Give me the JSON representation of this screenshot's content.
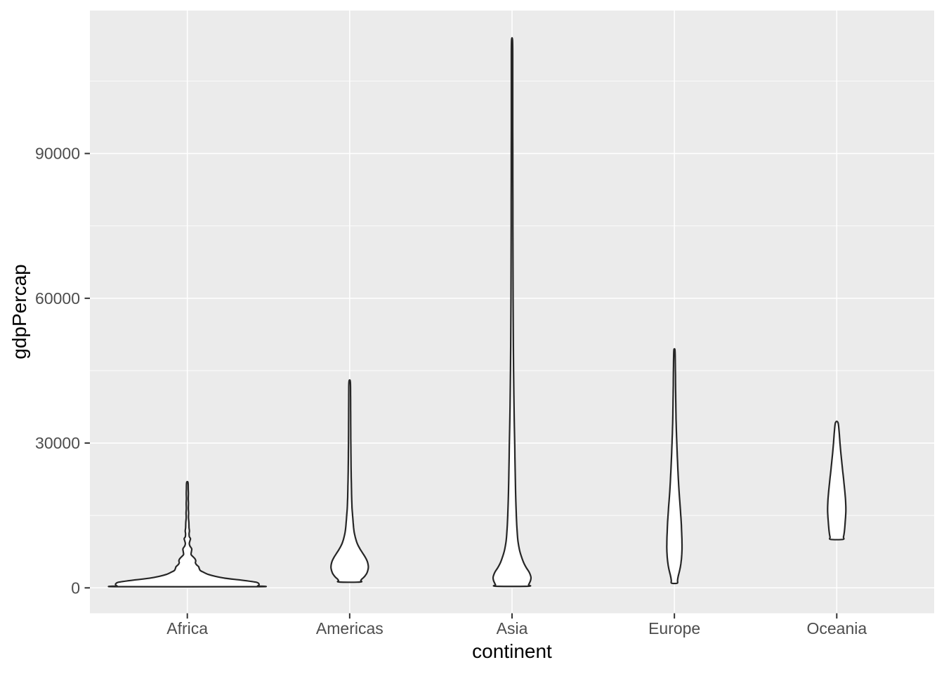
{
  "axes": {
    "x_title": "continent",
    "y_title": "gdpPercap",
    "x_tick_labels": [
      "Africa",
      "Americas",
      "Asia",
      "Europe",
      "Oceania"
    ],
    "y_tick_labels": [
      "0",
      "30000",
      "60000",
      "90000"
    ]
  },
  "chart_data": {
    "type": "violin",
    "title": "",
    "xlabel": "continent",
    "ylabel": "gdpPercap",
    "categories": [
      "Africa",
      "Americas",
      "Asia",
      "Europe",
      "Oceania"
    ],
    "y_major_ticks": [
      0,
      30000,
      60000,
      90000
    ],
    "y_minor_gridlines": [
      15000,
      45000,
      75000,
      105000
    ],
    "ylim": [
      -5265,
      119620
    ],
    "grid": "major-and-minor-horizontal, major-vertical-at-categories",
    "legend": "none",
    "series": [
      {
        "name": "Africa",
        "min": 241,
        "max": 21950,
        "profile": [
          [
            21950,
            0.7
          ],
          [
            21500,
            1.2
          ],
          [
            20500,
            1.3
          ],
          [
            19500,
            1.5
          ],
          [
            18500,
            1.3
          ],
          [
            17500,
            1.6
          ],
          [
            16500,
            1.4
          ],
          [
            15500,
            1.8
          ],
          [
            14500,
            1.6
          ],
          [
            13500,
            2.2
          ],
          [
            12500,
            2.4
          ],
          [
            11800,
            3.0
          ],
          [
            11200,
            2.5
          ],
          [
            10600,
            2.8
          ],
          [
            10200,
            4.5
          ],
          [
            9700,
            3.6
          ],
          [
            9200,
            2.8
          ],
          [
            8700,
            3.6
          ],
          [
            8100,
            6.2
          ],
          [
            7500,
            5.8
          ],
          [
            6900,
            5.4
          ],
          [
            6400,
            8.5
          ],
          [
            6000,
            11.0
          ],
          [
            5600,
            12.0
          ],
          [
            5200,
            11.5
          ],
          [
            4800,
            13.0
          ],
          [
            4400,
            16.0
          ],
          [
            4000,
            17.0
          ],
          [
            3600,
            18.5
          ],
          [
            3200,
            23.5
          ],
          [
            2800,
            29.5
          ],
          [
            2400,
            39.5
          ],
          [
            2000,
            54.0
          ],
          [
            1600,
            77.0
          ],
          [
            1200,
            97.0
          ],
          [
            900,
            101.5
          ],
          [
            600,
            102.0
          ],
          [
            400,
            100.0
          ],
          [
            241,
            97.0
          ]
        ]
      },
      {
        "name": "Americas",
        "min": 1202,
        "max": 42950,
        "profile": [
          [
            42950,
            0.7
          ],
          [
            42000,
            1.2
          ],
          [
            40000,
            1.3
          ],
          [
            37000,
            1.4
          ],
          [
            34000,
            1.5
          ],
          [
            31000,
            1.6
          ],
          [
            28000,
            1.8
          ],
          [
            25000,
            2.0
          ],
          [
            23000,
            2.2
          ],
          [
            21000,
            2.5
          ],
          [
            19500,
            2.7
          ],
          [
            18000,
            3.0
          ],
          [
            16500,
            3.4
          ],
          [
            15000,
            4.2
          ],
          [
            13500,
            5.0
          ],
          [
            12500,
            5.6
          ],
          [
            11500,
            6.5
          ],
          [
            10500,
            8.0
          ],
          [
            9500,
            10.0
          ],
          [
            8800,
            12.0
          ],
          [
            8000,
            15.0
          ],
          [
            7200,
            18.5
          ],
          [
            6400,
            22.0
          ],
          [
            5600,
            24.8
          ],
          [
            4800,
            26.3
          ],
          [
            4200,
            26.6
          ],
          [
            3600,
            25.8
          ],
          [
            3000,
            24.3
          ],
          [
            2600,
            22.5
          ],
          [
            2200,
            20.2
          ],
          [
            1800,
            17.2
          ],
          [
            1500,
            15.8
          ],
          [
            1202,
            14.8
          ]
        ]
      },
      {
        "name": "Asia",
        "min": 331,
        "max": 113523,
        "profile": [
          [
            113523,
            0.7
          ],
          [
            110000,
            1.0
          ],
          [
            105000,
            1.0
          ],
          [
            100000,
            1.0
          ],
          [
            95000,
            1.0
          ],
          [
            90000,
            1.1
          ],
          [
            85000,
            1.1
          ],
          [
            80000,
            1.2
          ],
          [
            75000,
            1.2
          ],
          [
            70000,
            1.3
          ],
          [
            65000,
            1.4
          ],
          [
            60000,
            1.5
          ],
          [
            55000,
            1.7
          ],
          [
            50000,
            1.9
          ],
          [
            45000,
            2.2
          ],
          [
            40000,
            2.6
          ],
          [
            35000,
            3.1
          ],
          [
            30000,
            3.8
          ],
          [
            27000,
            4.1
          ],
          [
            24000,
            4.5
          ],
          [
            21000,
            4.9
          ],
          [
            18000,
            5.4
          ],
          [
            15000,
            6.1
          ],
          [
            13000,
            6.7
          ],
          [
            11000,
            7.6
          ],
          [
            9500,
            8.6
          ],
          [
            8000,
            10.4
          ],
          [
            7000,
            12.2
          ],
          [
            6000,
            14.5
          ],
          [
            5000,
            17.2
          ],
          [
            4200,
            20.2
          ],
          [
            3400,
            23.8
          ],
          [
            2700,
            26.0
          ],
          [
            2100,
            27.0
          ],
          [
            1500,
            26.3
          ],
          [
            1000,
            24.8
          ],
          [
            600,
            23.5
          ],
          [
            331,
            22.8
          ]
        ]
      },
      {
        "name": "Europe",
        "min": 973,
        "max": 49350,
        "profile": [
          [
            49350,
            0.7
          ],
          [
            48000,
            1.1
          ],
          [
            46000,
            1.3
          ],
          [
            44000,
            1.5
          ],
          [
            42000,
            1.6
          ],
          [
            40000,
            1.8
          ],
          [
            38000,
            2.0
          ],
          [
            36000,
            2.2
          ],
          [
            34000,
            2.5
          ],
          [
            32000,
            2.9
          ],
          [
            30000,
            3.4
          ],
          [
            28000,
            3.9
          ],
          [
            26000,
            4.5
          ],
          [
            24000,
            5.1
          ],
          [
            22000,
            5.8
          ],
          [
            20000,
            6.6
          ],
          [
            18000,
            7.6
          ],
          [
            16000,
            8.6
          ],
          [
            14500,
            9.3
          ],
          [
            13000,
            9.9
          ],
          [
            11500,
            10.3
          ],
          [
            10000,
            10.7
          ],
          [
            9000,
            10.8
          ],
          [
            8000,
            10.8
          ],
          [
            7000,
            10.5
          ],
          [
            6000,
            10.0
          ],
          [
            5000,
            9.2
          ],
          [
            4200,
            8.3
          ],
          [
            3400,
            7.1
          ],
          [
            2700,
            5.9
          ],
          [
            2100,
            5.0
          ],
          [
            1500,
            4.4
          ],
          [
            973,
            4.0
          ]
        ]
      },
      {
        "name": "Oceania",
        "min": 10039,
        "max": 34435,
        "profile": [
          [
            34435,
            1.0
          ],
          [
            34000,
            2.2
          ],
          [
            33000,
            3.0
          ],
          [
            32000,
            3.6
          ],
          [
            31000,
            4.1
          ],
          [
            30000,
            4.6
          ],
          [
            29000,
            5.2
          ],
          [
            28000,
            5.8
          ],
          [
            27000,
            6.5
          ],
          [
            26000,
            7.2
          ],
          [
            25000,
            7.9
          ],
          [
            24000,
            8.6
          ],
          [
            23000,
            9.4
          ],
          [
            22000,
            10.1
          ],
          [
            21000,
            10.8
          ],
          [
            20000,
            11.5
          ],
          [
            19000,
            12.1
          ],
          [
            18000,
            12.6
          ],
          [
            17000,
            12.9
          ],
          [
            16000,
            13.0
          ],
          [
            15000,
            12.7
          ],
          [
            14000,
            12.2
          ],
          [
            13000,
            11.7
          ],
          [
            12000,
            11.1
          ],
          [
            11000,
            10.2
          ],
          [
            10500,
            9.5
          ],
          [
            10039,
            8.7
          ]
        ]
      }
    ],
    "style": {
      "panel_bg": "#EBEBEB",
      "grid": "#FFFFFF",
      "violin_fill": "#FFFFFF",
      "violin_stroke": "#262626",
      "tick_mark": "#333333",
      "axis_text": "#4D4D4D",
      "axis_title": "#000000"
    }
  }
}
